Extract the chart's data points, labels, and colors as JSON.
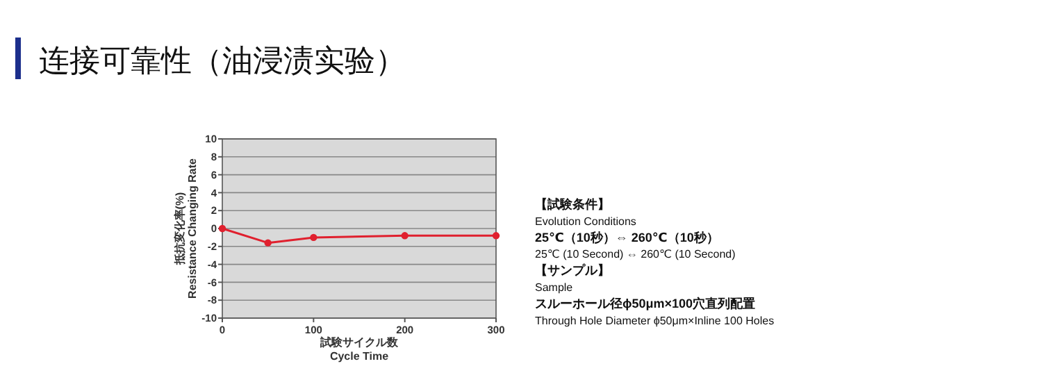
{
  "chart_data": {
    "type": "line",
    "title": "连接可靠性（油浸渍实验）",
    "xlabel": "試験サイクル数\nCycle Time",
    "ylabel": "抵抗変化率(%)\nResistance Changing Rate",
    "x": [
      0,
      50,
      100,
      200,
      300
    ],
    "series": [
      {
        "color": "#e0202e",
        "values": [
          0,
          -1.6,
          -1.0,
          -0.8,
          -0.8
        ]
      }
    ],
    "xlim": [
      0,
      300
    ],
    "xticks": [
      0,
      100,
      200,
      300
    ],
    "ylim": [
      -10,
      10
    ],
    "yticks": [
      -10,
      -8,
      -6,
      -4,
      -2,
      0,
      2,
      4,
      6,
      8,
      10
    ],
    "grid": "y",
    "marker": "circle",
    "line_style": "solid",
    "annotations": [
      "【試験条件】",
      "Evolution Conditions",
      "25℃（10秒）⇔ 260℃（10秒）",
      "25℃ (10 Second) ⇔ 260℃ (10 Second)",
      "【サンプル】",
      "Sample",
      "スルーホール径ϕ50μm×100穴直列配置",
      "Through Hole Diameter ϕ50μm×Inline 100 Holes"
    ]
  }
}
